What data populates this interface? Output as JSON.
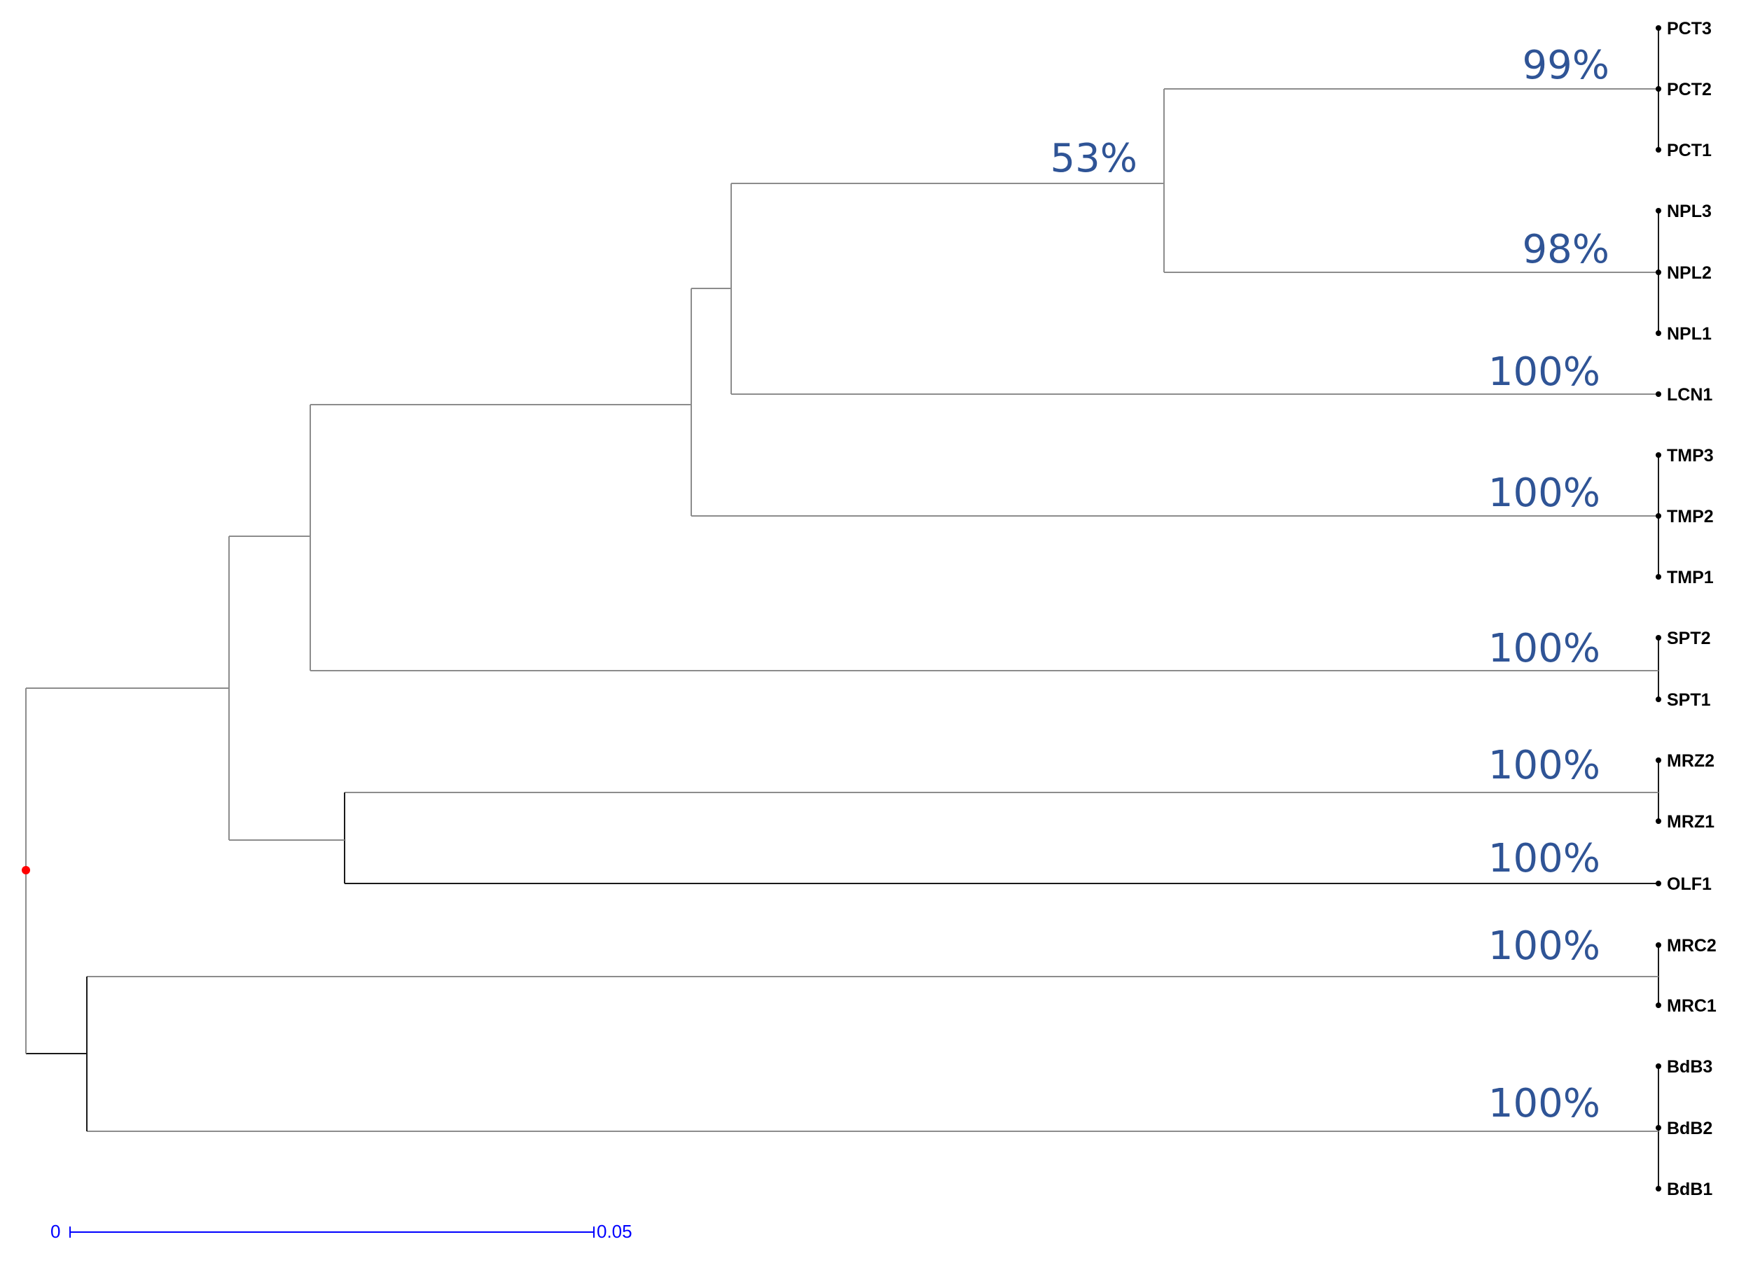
{
  "colors": {
    "branch": "#8c8c8c",
    "branch_dark": "#1a1a1a",
    "support": "#2f5496",
    "root": "#ff0000",
    "scale": "#0000ff",
    "leaf": "#000000"
  },
  "leaves": [
    "PCT3",
    "PCT2",
    "PCT1",
    "NPL3",
    "NPL2",
    "NPL1",
    "LCN1",
    "TMP3",
    "TMP2",
    "TMP1",
    "SPT2",
    "SPT1",
    "MRZ2",
    "MRZ1",
    "OLF1",
    "MRC2",
    "MRC1",
    "BdB3",
    "BdB2",
    "BdB1"
  ],
  "supports": [
    "99%",
    "53%",
    "98%",
    "100%",
    "100%",
    "100%",
    "100%",
    "100%",
    "100%",
    "100%"
  ],
  "scale_bar": {
    "start_label": "0",
    "end_label": "0.05"
  }
}
